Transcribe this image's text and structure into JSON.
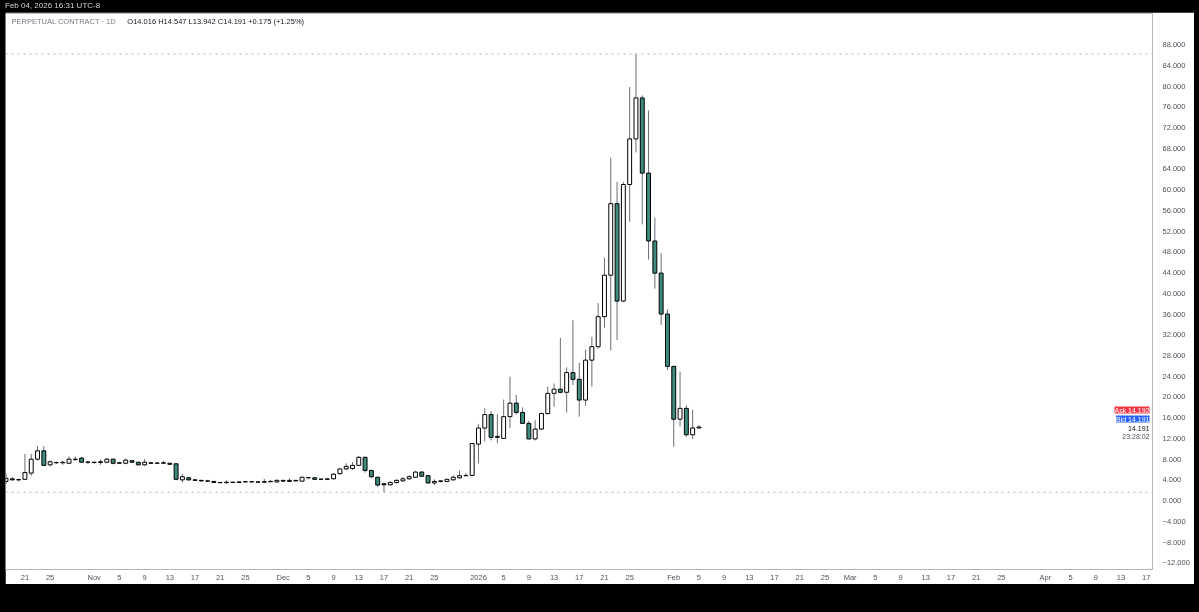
{
  "chart_data": {
    "type": "candlestick",
    "title": "PERPETUAL CONTRACT · 1D",
    "subtitle": "O14.016 H14.547 L13.942 C14.191 +0.175 (+1.25%)",
    "x": [
      "2025-10-18",
      "2025-10-19",
      "2025-10-20",
      "2025-10-21",
      "2025-10-22",
      "2025-10-23",
      "2025-10-24",
      "2025-10-25",
      "2025-10-26",
      "2025-10-27",
      "2025-10-28",
      "2025-10-29",
      "2025-10-30",
      "2025-10-31",
      "2025-11-01",
      "2025-11-02",
      "2025-11-03",
      "2025-11-04",
      "2025-11-05",
      "2025-11-06",
      "2025-11-07",
      "2025-11-08",
      "2025-11-09",
      "2025-11-10",
      "2025-11-11",
      "2025-11-12",
      "2025-11-13",
      "2025-11-14",
      "2025-11-15",
      "2025-11-16",
      "2025-11-17",
      "2025-11-18",
      "2025-11-19",
      "2025-11-20",
      "2025-11-21",
      "2025-11-22",
      "2025-11-23",
      "2025-11-24",
      "2025-11-25",
      "2025-11-26",
      "2025-11-27",
      "2025-11-28",
      "2025-11-29",
      "2025-11-30",
      "2025-12-01",
      "2025-12-02",
      "2025-12-03",
      "2025-12-04",
      "2025-12-05",
      "2025-12-06",
      "2025-12-07",
      "2025-12-08",
      "2025-12-09",
      "2025-12-10",
      "2025-12-11",
      "2025-12-12",
      "2025-12-13",
      "2025-12-14",
      "2025-12-15",
      "2025-12-16",
      "2025-12-17",
      "2025-12-18",
      "2025-12-19",
      "2025-12-20",
      "2025-12-21",
      "2025-12-22",
      "2025-12-23",
      "2025-12-24",
      "2025-12-25",
      "2025-12-26",
      "2025-12-27",
      "2025-12-28",
      "2025-12-29",
      "2025-12-30",
      "2025-12-31",
      "2026-01-01",
      "2026-01-02",
      "2026-01-03",
      "2026-01-04",
      "2026-01-05",
      "2026-01-06",
      "2026-01-07",
      "2026-01-08",
      "2026-01-09",
      "2026-01-10",
      "2026-01-11",
      "2026-01-12",
      "2026-01-13",
      "2026-01-14",
      "2026-01-15",
      "2026-01-16",
      "2026-01-17",
      "2026-01-18",
      "2026-01-19",
      "2026-01-20",
      "2026-01-21",
      "2026-01-22",
      "2026-01-23",
      "2026-01-24",
      "2026-01-25",
      "2026-01-26",
      "2026-01-27",
      "2026-01-28",
      "2026-01-29",
      "2026-01-30",
      "2026-01-31",
      "2026-02-01",
      "2026-02-02",
      "2026-02-03",
      "2026-02-04",
      "2026-02-05"
    ],
    "ohlc": [
      [
        3.7,
        5.3,
        3.2,
        4.3
      ],
      [
        4.2,
        4.5,
        3.9,
        4.0
      ],
      [
        4.0,
        4.2,
        3.7,
        4.05
      ],
      [
        4.1,
        9.0,
        4.0,
        5.4
      ],
      [
        5.3,
        9.0,
        4.8,
        8.0
      ],
      [
        8.0,
        10.5,
        7.7,
        9.6
      ],
      [
        9.6,
        10.5,
        6.7,
        6.8
      ],
      [
        6.9,
        7.7,
        6.6,
        7.5
      ],
      [
        7.3,
        7.5,
        7.1,
        7.35
      ],
      [
        7.3,
        7.7,
        6.9,
        7.4
      ],
      [
        7.2,
        8.5,
        7.1,
        8.0
      ],
      [
        7.9,
        8.5,
        7.7,
        8.0
      ],
      [
        8.2,
        8.4,
        7.3,
        7.4
      ],
      [
        7.4,
        7.6,
        7.0,
        7.45
      ],
      [
        7.4,
        7.5,
        7.1,
        7.35
      ],
      [
        7.35,
        7.95,
        6.9,
        7.5
      ],
      [
        7.4,
        8.2,
        7.2,
        8.0
      ],
      [
        8.0,
        8.1,
        7.0,
        7.2
      ],
      [
        7.2,
        7.5,
        7.1,
        7.3
      ],
      [
        7.2,
        8.1,
        7.0,
        7.8
      ],
      [
        7.7,
        7.8,
        7.3,
        7.4
      ],
      [
        7.4,
        7.5,
        6.8,
        6.9
      ],
      [
        6.9,
        8.0,
        6.7,
        7.4
      ],
      [
        7.3,
        7.4,
        7.1,
        7.2
      ],
      [
        7.2,
        7.3,
        7.1,
        7.25
      ],
      [
        7.2,
        7.7,
        7.1,
        7.3
      ],
      [
        7.2,
        7.3,
        6.9,
        7.0
      ],
      [
        7.1,
        7.2,
        3.9,
        4.1
      ],
      [
        4.0,
        5.1,
        3.5,
        4.6
      ],
      [
        4.4,
        4.6,
        3.8,
        4.0
      ],
      [
        4.0,
        4.1,
        3.8,
        3.9
      ],
      [
        3.9,
        4.0,
        3.7,
        3.8
      ],
      [
        3.8,
        4.0,
        3.6,
        3.75
      ],
      [
        3.7,
        3.75,
        3.4,
        3.5
      ],
      [
        3.5,
        3.6,
        3.3,
        3.45
      ],
      [
        3.45,
        3.9,
        3.3,
        3.55
      ],
      [
        3.55,
        3.65,
        3.4,
        3.5
      ],
      [
        3.5,
        3.7,
        3.45,
        3.6
      ],
      [
        3.6,
        3.7,
        3.5,
        3.65
      ],
      [
        3.6,
        3.7,
        3.5,
        3.65
      ],
      [
        3.6,
        3.65,
        3.5,
        3.55
      ],
      [
        3.55,
        4.2,
        3.35,
        3.65
      ],
      [
        3.65,
        4.0,
        3.5,
        3.7
      ],
      [
        3.6,
        4.1,
        3.5,
        3.9
      ],
      [
        3.9,
        4.0,
        3.6,
        3.75
      ],
      [
        3.7,
        4.3,
        3.6,
        3.9
      ],
      [
        3.9,
        4.0,
        3.7,
        3.8
      ],
      [
        3.75,
        4.6,
        3.6,
        4.5
      ],
      [
        4.4,
        4.6,
        4.1,
        4.45
      ],
      [
        4.4,
        4.45,
        4.0,
        4.1
      ],
      [
        4.1,
        4.2,
        4.0,
        4.15
      ],
      [
        4.1,
        4.25,
        3.95,
        4.2
      ],
      [
        4.2,
        5.3,
        4.1,
        5.1
      ],
      [
        5.2,
        6.2,
        5.0,
        6.1
      ],
      [
        6.1,
        7.2,
        5.9,
        6.6
      ],
      [
        6.2,
        7.4,
        5.9,
        6.8
      ],
      [
        6.8,
        8.6,
        6.7,
        8.35
      ],
      [
        8.35,
        8.5,
        5.4,
        5.8
      ],
      [
        5.8,
        6.0,
        4.3,
        4.6
      ],
      [
        4.5,
        4.6,
        2.6,
        3.0
      ],
      [
        3.25,
        3.4,
        1.6,
        3.05
      ],
      [
        3.05,
        3.7,
        2.9,
        3.5
      ],
      [
        3.5,
        4.1,
        3.3,
        3.9
      ],
      [
        3.8,
        4.6,
        3.6,
        4.2
      ],
      [
        4.2,
        4.9,
        4.0,
        4.6
      ],
      [
        4.5,
        5.7,
        4.4,
        5.5
      ],
      [
        5.5,
        5.7,
        4.6,
        4.7
      ],
      [
        4.8,
        5.0,
        3.3,
        3.4
      ],
      [
        3.4,
        4.1,
        3.0,
        3.7
      ],
      [
        3.7,
        3.9,
        3.5,
        3.8
      ],
      [
        3.7,
        4.2,
        3.6,
        4.1
      ],
      [
        4.0,
        4.9,
        3.9,
        4.5
      ],
      [
        4.4,
        5.8,
        4.2,
        4.8
      ],
      [
        4.8,
        5.3,
        4.7,
        4.85
      ],
      [
        4.85,
        11.1,
        4.7,
        11.0
      ],
      [
        10.9,
        14.8,
        7.2,
        14.0
      ],
      [
        14.0,
        17.8,
        11.4,
        16.6
      ],
      [
        16.6,
        17.3,
        11.6,
        12.2
      ],
      [
        12.2,
        16.7,
        11.1,
        12.4
      ],
      [
        12.0,
        19.5,
        11.9,
        16.2
      ],
      [
        16.2,
        23.9,
        14.0,
        18.8
      ],
      [
        18.8,
        20.4,
        16.6,
        17.0
      ],
      [
        17.0,
        18.0,
        14.8,
        14.9
      ],
      [
        14.9,
        15.4,
        11.8,
        11.9
      ],
      [
        11.9,
        15.5,
        11.6,
        13.8
      ],
      [
        13.8,
        17.0,
        13.6,
        16.8
      ],
      [
        16.8,
        22.0,
        16.6,
        20.7
      ],
      [
        20.7,
        22.6,
        18.1,
        21.5
      ],
      [
        21.5,
        31.4,
        20.7,
        20.9
      ],
      [
        20.9,
        25.7,
        17.0,
        24.7
      ],
      [
        24.7,
        34.8,
        22.3,
        23.4
      ],
      [
        23.4,
        26.6,
        16.2,
        19.4
      ],
      [
        19.4,
        29.1,
        18.3,
        27.1
      ],
      [
        27.1,
        31.6,
        22.0,
        29.7
      ],
      [
        29.7,
        38.1,
        29.3,
        35.5
      ],
      [
        35.5,
        46.9,
        33.4,
        43.5
      ],
      [
        43.5,
        66.2,
        29.0,
        57.3
      ],
      [
        57.3,
        61.5,
        31.0,
        38.5
      ],
      [
        38.5,
        61.5,
        38.3,
        61.0
      ],
      [
        61.0,
        79.8,
        53.8,
        69.8
      ],
      [
        69.8,
        86.2,
        67.2,
        77.7
      ],
      [
        77.7,
        78.2,
        53.3,
        63.2
      ],
      [
        63.2,
        75.3,
        46.5,
        50.1
      ],
      [
        50.1,
        54.6,
        40.9,
        43.9
      ],
      [
        43.9,
        47.7,
        33.9,
        36.0
      ],
      [
        36.0,
        36.9,
        25.2,
        25.9
      ],
      [
        25.9,
        26.0,
        10.4,
        15.7
      ],
      [
        15.7,
        24.9,
        14.3,
        17.8
      ],
      [
        17.8,
        18.4,
        12.3,
        12.7
      ],
      [
        12.7,
        17.5,
        11.9,
        14.016
      ],
      [
        14.016,
        14.547,
        13.942,
        14.191
      ]
    ],
    "colors": [
      "#ffffff",
      "#3d8b7d",
      "#ffffff",
      "#ffffff",
      "#ffffff",
      "#ffffff",
      "#3d8b7d",
      "#ffffff",
      "#ffffff",
      "#ffffff",
      "#ffffff",
      "#ffffff",
      "#3d8b7d",
      "#ffffff",
      "#3d8b7d",
      "#ffffff",
      "#ffffff",
      "#3d8b7d",
      "#ffffff",
      "#ffffff",
      "#3d8b7d",
      "#3d8b7d",
      "#ffffff",
      "#3d8b7d",
      "#ffffff",
      "#ffffff",
      "#3d8b7d",
      "#3d8b7d",
      "#ffffff",
      "#3d8b7d",
      "#3d8b7d",
      "#3d8b7d",
      "#3d8b7d",
      "#3d8b7d",
      "#3d8b7d",
      "#ffffff",
      "#3d8b7d",
      "#ffffff",
      "#ffffff",
      "#ffffff",
      "#3d8b7d",
      "#ffffff",
      "#ffffff",
      "#ffffff",
      "#3d8b7d",
      "#ffffff",
      "#3d8b7d",
      "#ffffff",
      "#ffffff",
      "#3d8b7d",
      "#ffffff",
      "#ffffff",
      "#ffffff",
      "#ffffff",
      "#ffffff",
      "#ffffff",
      "#ffffff",
      "#3d8b7d",
      "#3d8b7d",
      "#3d8b7d",
      "#3d8b7d",
      "#ffffff",
      "#ffffff",
      "#ffffff",
      "#ffffff",
      "#ffffff",
      "#3d8b7d",
      "#3d8b7d",
      "#ffffff",
      "#ffffff",
      "#ffffff",
      "#ffffff",
      "#ffffff",
      "#ffffff",
      "#ffffff",
      "#ffffff",
      "#ffffff",
      "#3d8b7d",
      "#ffffff",
      "#ffffff",
      "#ffffff",
      "#3d8b7d",
      "#3d8b7d",
      "#3d8b7d",
      "#ffffff",
      "#ffffff",
      "#ffffff",
      "#ffffff",
      "#3d8b7d",
      "#ffffff",
      "#3d8b7d",
      "#3d8b7d",
      "#ffffff",
      "#ffffff",
      "#ffffff",
      "#ffffff",
      "#ffffff",
      "#3d8b7d",
      "#ffffff",
      "#ffffff",
      "#ffffff",
      "#3d8b7d",
      "#3d8b7d",
      "#3d8b7d",
      "#3d8b7d",
      "#3d8b7d",
      "#3d8b7d",
      "#ffffff",
      "#3d8b7d",
      "#ffffff",
      "#ffffff"
    ],
    "xlim": [
      "2025-10-17T22:00",
      "2026-04-18T00:00"
    ],
    "xticks": [
      {
        "value": "2025-10-21",
        "label": "21"
      },
      {
        "value": "2025-10-25",
        "label": "25"
      },
      {
        "value": "2025-11-01",
        "label": "Nov"
      },
      {
        "value": "2025-11-05",
        "label": "5"
      },
      {
        "value": "2025-11-09",
        "label": "9"
      },
      {
        "value": "2025-11-13",
        "label": "13"
      },
      {
        "value": "2025-11-17",
        "label": "17"
      },
      {
        "value": "2025-11-21",
        "label": "21"
      },
      {
        "value": "2025-11-25",
        "label": "25"
      },
      {
        "value": "2025-12-01",
        "label": "Dec"
      },
      {
        "value": "2025-12-05",
        "label": "5"
      },
      {
        "value": "2025-12-09",
        "label": "9"
      },
      {
        "value": "2025-12-13",
        "label": "13"
      },
      {
        "value": "2025-12-17",
        "label": "17"
      },
      {
        "value": "2025-12-21",
        "label": "21"
      },
      {
        "value": "2025-12-25",
        "label": "25"
      },
      {
        "value": "2026-01-01",
        "label": "2026"
      },
      {
        "value": "2026-01-05",
        "label": "5"
      },
      {
        "value": "2026-01-09",
        "label": "9"
      },
      {
        "value": "2026-01-13",
        "label": "13"
      },
      {
        "value": "2026-01-17",
        "label": "17"
      },
      {
        "value": "2026-01-21",
        "label": "21"
      },
      {
        "value": "2026-01-25",
        "label": "25"
      },
      {
        "value": "2026-02-01",
        "label": "Feb"
      },
      {
        "value": "2026-02-05",
        "label": "5"
      },
      {
        "value": "2026-02-09",
        "label": "9"
      },
      {
        "value": "2026-02-13",
        "label": "13"
      },
      {
        "value": "2026-02-17",
        "label": "17"
      },
      {
        "value": "2026-02-21",
        "label": "21"
      },
      {
        "value": "2026-02-25",
        "label": "25"
      },
      {
        "value": "2026-03-01",
        "label": "Mar"
      },
      {
        "value": "2026-03-05",
        "label": "5"
      },
      {
        "value": "2026-03-09",
        "label": "9"
      },
      {
        "value": "2026-03-13",
        "label": "13"
      },
      {
        "value": "2026-03-17",
        "label": "17"
      },
      {
        "value": "2026-03-21",
        "label": "21"
      },
      {
        "value": "2026-03-25",
        "label": "25"
      },
      {
        "value": "2026-04-01",
        "label": "Apr"
      },
      {
        "value": "2026-04-05",
        "label": "5"
      },
      {
        "value": "2026-04-09",
        "label": "9"
      },
      {
        "value": "2026-04-13",
        "label": "13"
      },
      {
        "value": "2026-04-17",
        "label": "17"
      }
    ],
    "ylim": [
      -13.3,
      94
    ],
    "yticks": [
      {
        "value": -12,
        "label": "−12.000"
      },
      {
        "value": -8,
        "label": "−8.000"
      },
      {
        "value": -4,
        "label": "−4.000"
      },
      {
        "value": 0,
        "label": "0.000"
      },
      {
        "value": 4,
        "label": "4.000"
      },
      {
        "value": 8,
        "label": "8.000"
      },
      {
        "value": 12,
        "label": "12.000"
      },
      {
        "value": 16,
        "label": "16.000"
      },
      {
        "value": 20,
        "label": "20.000"
      },
      {
        "value": 24,
        "label": "24.000"
      },
      {
        "value": 28,
        "label": "28.000"
      },
      {
        "value": 32,
        "label": "32.000"
      },
      {
        "value": 36,
        "label": "36.000"
      },
      {
        "value": 40,
        "label": "40.000"
      },
      {
        "value": 44,
        "label": "44.000"
      },
      {
        "value": 48,
        "label": "48.000"
      },
      {
        "value": 52,
        "label": "52.000"
      },
      {
        "value": 56,
        "label": "56.000"
      },
      {
        "value": 60,
        "label": "60.000"
      },
      {
        "value": 64,
        "label": "64.000"
      },
      {
        "value": 68,
        "label": "68.000"
      },
      {
        "value": 72,
        "label": "72.000"
      },
      {
        "value": 76,
        "label": "76.000"
      },
      {
        "value": 80,
        "label": "80.000"
      },
      {
        "value": 84,
        "label": "84.000"
      },
      {
        "value": 88,
        "label": "88.000"
      }
    ],
    "ref_lines": [
      {
        "axis": "y",
        "value": 86.2,
        "color": "#b2b5be",
        "line_style": "dotted"
      },
      {
        "axis": "y",
        "value": 1.6,
        "color": "#b2b5be",
        "line_style": "dotted"
      }
    ],
    "annotations": [
      "Feb 04, 2026 16:31 UTC-8",
      "Ask 14.192",
      "Bid 14.191",
      "14.191",
      "23:28:02"
    ]
  }
}
